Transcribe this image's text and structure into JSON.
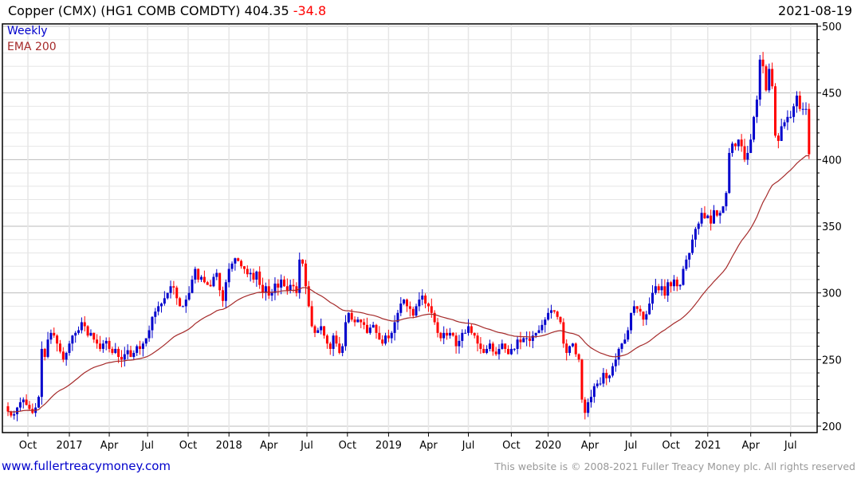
{
  "header": {
    "name": "Copper (CMX) (HG1 COMB COMDTY)",
    "last": "404.35",
    "change": "-34.8",
    "date": "2021-08-19"
  },
  "legend": {
    "period": "Weekly",
    "indicator": "EMA 200"
  },
  "footer": {
    "link": "www.fullertreacymoney.com",
    "copyright": "This website is © 2008-2021 Fuller Treacy Money plc. All rights reserved"
  },
  "colors": {
    "up": "#0000cc",
    "down": "#ff0000",
    "ema": "#a52a2a",
    "grid_major": "#bbbbbb",
    "grid_minor": "#e6e6e6"
  },
  "chart_data": {
    "type": "candlestick",
    "title": "Copper (CMX) (HG1 COMB COMDTY)",
    "interval": "weekly",
    "ylim": [
      200,
      500
    ],
    "yticks": [
      200,
      250,
      300,
      350,
      400,
      450,
      500
    ],
    "ema_period": 40,
    "xticks": [
      {
        "label": "Oct",
        "week": 6.5
      },
      {
        "label": "2017",
        "week": 20
      },
      {
        "label": "Apr",
        "week": 33
      },
      {
        "label": "Jul",
        "week": 45.5
      },
      {
        "label": "Oct",
        "week": 58.7
      },
      {
        "label": "2018",
        "week": 72
      },
      {
        "label": "Apr",
        "week": 85
      },
      {
        "label": "Jul",
        "week": 97.4
      },
      {
        "label": "Oct",
        "week": 110.6
      },
      {
        "label": "2019",
        "week": 124
      },
      {
        "label": "Apr",
        "week": 137
      },
      {
        "label": "Jul",
        "week": 150
      },
      {
        "label": "Oct",
        "week": 164
      },
      {
        "label": "2020",
        "week": 176
      },
      {
        "label": "Apr",
        "week": 189.6
      },
      {
        "label": "Jul",
        "week": 203
      },
      {
        "label": "Oct",
        "week": 216
      },
      {
        "label": "2021",
        "week": 228
      },
      {
        "label": "Apr",
        "week": 242
      },
      {
        "label": "Jul",
        "week": 255
      }
    ],
    "close": [
      211,
      208,
      209,
      214,
      218,
      220,
      216,
      213,
      210,
      214,
      222,
      258,
      252,
      265,
      270,
      268,
      262,
      256,
      250,
      255,
      262,
      268,
      270,
      272,
      278,
      275,
      268,
      270,
      265,
      262,
      258,
      262,
      264,
      258,
      255,
      258,
      252,
      250,
      254,
      257,
      252,
      255,
      260,
      258,
      262,
      266,
      272,
      282,
      286,
      290,
      292,
      296,
      300,
      305,
      304,
      296,
      290,
      290,
      295,
      300,
      310,
      318,
      310,
      312,
      308,
      306,
      305,
      312,
      315,
      302,
      294,
      308,
      318,
      322,
      326,
      324,
      320,
      318,
      314,
      315,
      310,
      316,
      306,
      300,
      305,
      298,
      300,
      307,
      304,
      310,
      305,
      302,
      306,
      305,
      300,
      325,
      322,
      305,
      290,
      275,
      270,
      272,
      275,
      268,
      262,
      258,
      268,
      262,
      255,
      260,
      278,
      285,
      280,
      278,
      280,
      278,
      276,
      270,
      274,
      276,
      270,
      265,
      262,
      268,
      266,
      270,
      278,
      285,
      292,
      295,
      290,
      288,
      283,
      290,
      295,
      298,
      292,
      290,
      285,
      278,
      270,
      266,
      270,
      268,
      270,
      268,
      260,
      264,
      270,
      270,
      275,
      270,
      268,
      262,
      258,
      255,
      258,
      262,
      256,
      254,
      258,
      262,
      258,
      254,
      258,
      258,
      265,
      263,
      266,
      266,
      264,
      268,
      270,
      272,
      276,
      280,
      285,
      287,
      286,
      282,
      278,
      262,
      255,
      260,
      262,
      254,
      250,
      220,
      210,
      218,
      222,
      230,
      232,
      232,
      240,
      236,
      238,
      245,
      250,
      258,
      262,
      265,
      272,
      285,
      290,
      288,
      286,
      280,
      284,
      292,
      300,
      305,
      302,
      305,
      298,
      308,
      305,
      310,
      305,
      306,
      318,
      325,
      330,
      340,
      348,
      352,
      360,
      356,
      358,
      352,
      362,
      358,
      360,
      365,
      375,
      405,
      412,
      410,
      415,
      410,
      400,
      405,
      415,
      432,
      445,
      475,
      470,
      452,
      468,
      455,
      418,
      414,
      425,
      428,
      432,
      432,
      440,
      448,
      438,
      438,
      438,
      404
    ]
  }
}
